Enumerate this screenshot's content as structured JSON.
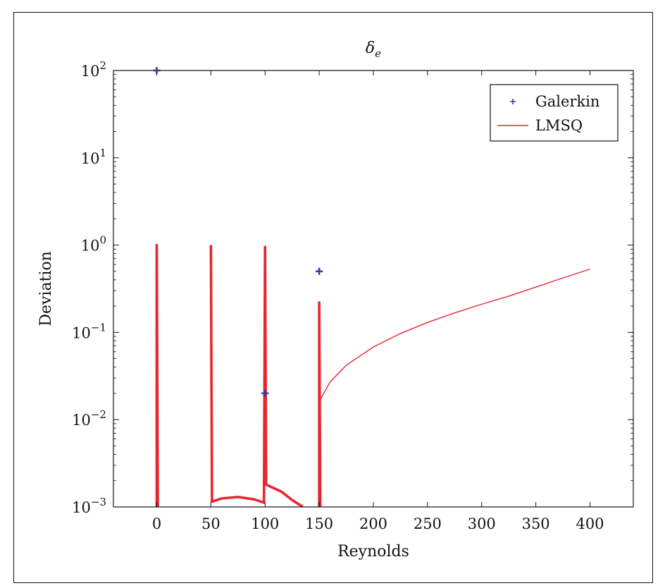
{
  "chart_data": {
    "type": "line",
    "title": "δe",
    "title_base": "δ",
    "title_sub": "e",
    "xlabel": "Reynolds",
    "ylabel": "Deviation",
    "xlim": [
      -40,
      440
    ],
    "ylim": [
      0.001,
      100
    ],
    "yscale": "log",
    "x_ticks": [
      0,
      50,
      100,
      150,
      200,
      250,
      300,
      350,
      400
    ],
    "y_ticks": [
      {
        "value": 0.001,
        "base": "10",
        "exp": "−3"
      },
      {
        "value": 0.01,
        "base": "10",
        "exp": "−2"
      },
      {
        "value": 0.1,
        "base": "10",
        "exp": "−1"
      },
      {
        "value": 1,
        "base": "10",
        "exp": "0"
      },
      {
        "value": 10,
        "base": "10",
        "exp": "1"
      },
      {
        "value": 100,
        "base": "10",
        "exp": "2"
      }
    ],
    "grid": false,
    "legend_position": "top-right",
    "series": [
      {
        "name": "Galerkin",
        "kind": "scatter",
        "marker": "+",
        "color": "#2b3f9e",
        "points": [
          {
            "x": 0,
            "y": 100
          },
          {
            "x": 100,
            "y": 0.02
          },
          {
            "x": 150,
            "y": 0.5
          }
        ]
      },
      {
        "name": "LMSQ",
        "kind": "line",
        "color": "#e8262f",
        "segments": [
          {
            "width": "thick",
            "points": [
              [
                0,
                0.001
              ],
              [
                0,
                1.0
              ],
              [
                1,
                0.001
              ]
            ]
          },
          {
            "width": "thick",
            "points": [
              [
                50,
                1.0
              ],
              [
                51,
                0.00115
              ],
              [
                60,
                0.00125
              ],
              [
                75,
                0.0013
              ],
              [
                90,
                0.00122
              ],
              [
                99,
                0.00112
              ],
              [
                100,
                0.95
              ],
              [
                101,
                0.0018
              ],
              [
                115,
                0.0015
              ],
              [
                125,
                0.0012
              ],
              [
                135,
                0.001
              ]
            ]
          },
          {
            "width": "thick",
            "points": [
              [
                150,
                0.001
              ],
              [
                150,
                0.22
              ],
              [
                151,
                0.001
              ]
            ]
          },
          {
            "width": "thin",
            "points": [
              [
                151,
                0.017
              ],
              [
                160,
                0.027
              ],
              [
                175,
                0.042
              ],
              [
                200,
                0.068
              ],
              [
                225,
                0.097
              ],
              [
                250,
                0.13
              ],
              [
                275,
                0.167
              ],
              [
                300,
                0.21
              ],
              [
                325,
                0.26
              ],
              [
                350,
                0.33
              ],
              [
                375,
                0.42
              ],
              [
                400,
                0.53
              ]
            ]
          }
        ]
      }
    ]
  }
}
